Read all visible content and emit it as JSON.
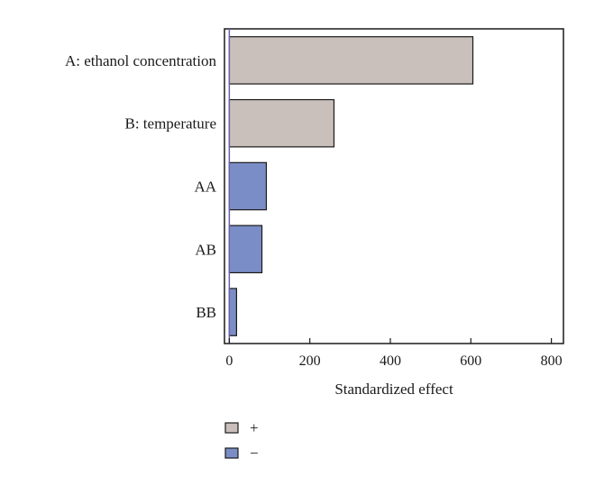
{
  "chart_data": {
    "type": "bar",
    "orientation": "horizontal",
    "categories": [
      "A: ethanol concentration",
      "B: temperature",
      "AA",
      "AB",
      "BB"
    ],
    "values": [
      605,
      260,
      92,
      81,
      18
    ],
    "signs": [
      "+",
      "+",
      "−",
      "−",
      "−"
    ],
    "xlabel": "Standardized effect",
    "xlim": [
      -12,
      830
    ],
    "xticks": [
      0,
      200,
      400,
      600,
      800
    ],
    "reference_line": 0,
    "grid": false,
    "legend": {
      "position": "bottom-left",
      "entries": [
        {
          "label": "+",
          "color": "#c9bfbb"
        },
        {
          "label": "−",
          "color": "#7b8dc6"
        }
      ]
    },
    "colors": {
      "positive": "#c9bfbb",
      "negative": "#7b8dc6",
      "reference_line": "#6a5fb0"
    }
  }
}
